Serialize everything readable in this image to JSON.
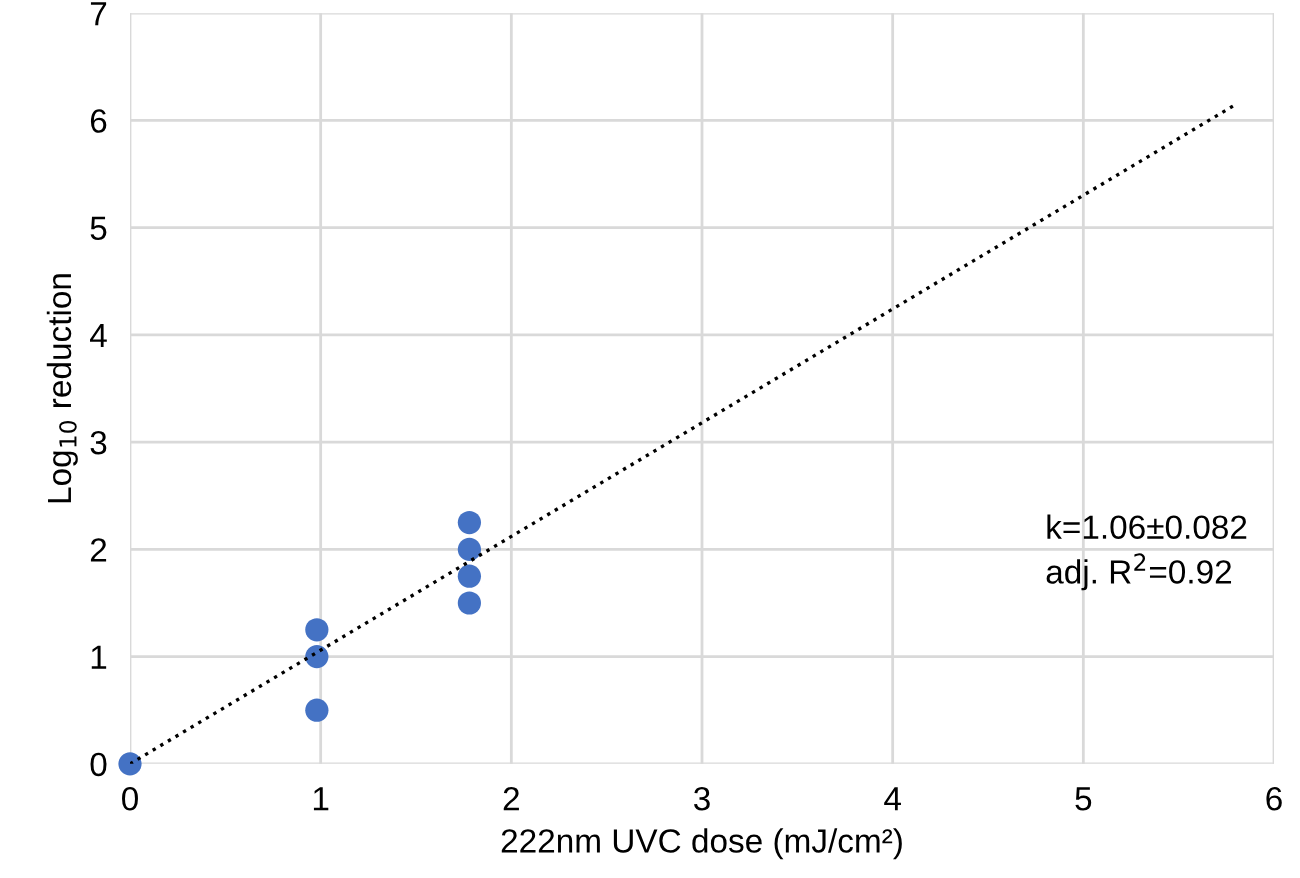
{
  "chart_data": {
    "type": "scatter",
    "xlabel": "222nm UVC dose (mJ/cm²)",
    "ylabel": "Log$_{10}$ reduction",
    "series": [
      {
        "color": "#4472c4",
        "x": [
          0,
          0.98,
          0.98,
          0.98,
          1.78,
          1.78,
          1.78,
          1.78
        ],
        "values": [
          0,
          0.5,
          1.0,
          1.25,
          1.5,
          1.75,
          2.0,
          2.25
        ]
      },
      {
        "type": "line",
        "color": "#000000",
        "line_style": "dotted",
        "x": [
          0,
          5.8
        ],
        "values": [
          0,
          6.15
        ]
      }
    ],
    "annotations": [
      "k=1.06±0.082",
      "adj. R$^{2}$=0.92"
    ],
    "xlim": [
      0,
      6
    ],
    "ylim": [
      0,
      7
    ],
    "xticks": [
      0,
      1,
      2,
      3,
      4,
      5,
      6
    ],
    "yticks": [
      0,
      1,
      2,
      3,
      4,
      5,
      6,
      7
    ],
    "grid": true
  }
}
